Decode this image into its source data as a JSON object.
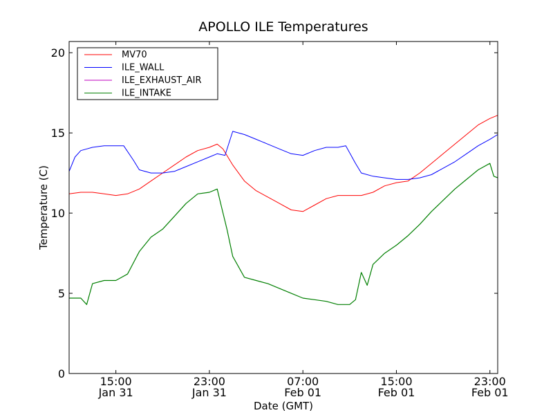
{
  "chart_data": {
    "type": "line",
    "title": "APOLLO ILE Temperatures",
    "xlabel": "Date (GMT)",
    "ylabel": "Temperature (C)",
    "xlim": [
      "2013-01-31T11:00",
      "2013-02-01T23:40"
    ],
    "ylim": [
      0,
      20.7
    ],
    "yticks": [
      0,
      5,
      10,
      15,
      20
    ],
    "xticks": [
      {
        "t": "2013-01-31T15:00",
        "line1": "15:00",
        "line2": "Jan 31"
      },
      {
        "t": "2013-01-31T23:00",
        "line1": "23:00",
        "line2": "Jan 31"
      },
      {
        "t": "2013-02-01T07:00",
        "line1": "07:00",
        "line2": "Feb 01"
      },
      {
        "t": "2013-02-01T15:00",
        "line1": "15:00",
        "line2": "Feb 01"
      },
      {
        "t": "2013-02-01T23:00",
        "line1": "23:00",
        "line2": "Feb 01"
      }
    ],
    "grid": false,
    "legend_position": "top-left",
    "series": [
      {
        "name": "MV70",
        "color": "#ff0000",
        "points": [
          [
            "2013-01-31T11:00",
            11.2
          ],
          [
            "2013-01-31T12:00",
            11.3
          ],
          [
            "2013-01-31T13:00",
            11.3
          ],
          [
            "2013-01-31T14:00",
            11.2
          ],
          [
            "2013-01-31T15:00",
            11.1
          ],
          [
            "2013-01-31T16:00",
            11.2
          ],
          [
            "2013-01-31T17:00",
            11.5
          ],
          [
            "2013-01-31T18:00",
            12.0
          ],
          [
            "2013-01-31T19:00",
            12.5
          ],
          [
            "2013-01-31T20:00",
            13.0
          ],
          [
            "2013-01-31T21:00",
            13.5
          ],
          [
            "2013-01-31T22:00",
            13.9
          ],
          [
            "2013-01-31T23:00",
            14.1
          ],
          [
            "2013-01-31T23:40",
            14.3
          ],
          [
            "2013-02-01T00:10",
            14.0
          ],
          [
            "2013-02-01T01:00",
            13.0
          ],
          [
            "2013-02-01T02:00",
            12.0
          ],
          [
            "2013-02-01T03:00",
            11.4
          ],
          [
            "2013-02-01T04:00",
            11.0
          ],
          [
            "2013-02-01T05:00",
            10.6
          ],
          [
            "2013-02-01T06:00",
            10.2
          ],
          [
            "2013-02-01T07:00",
            10.1
          ],
          [
            "2013-02-01T08:00",
            10.5
          ],
          [
            "2013-02-01T09:00",
            10.9
          ],
          [
            "2013-02-01T10:00",
            11.1
          ],
          [
            "2013-02-01T11:00",
            11.1
          ],
          [
            "2013-02-01T12:00",
            11.1
          ],
          [
            "2013-02-01T13:00",
            11.3
          ],
          [
            "2013-02-01T14:00",
            11.7
          ],
          [
            "2013-02-01T15:00",
            11.9
          ],
          [
            "2013-02-01T16:00",
            12.0
          ],
          [
            "2013-02-01T17:00",
            12.5
          ],
          [
            "2013-02-01T18:00",
            13.1
          ],
          [
            "2013-02-01T19:00",
            13.7
          ],
          [
            "2013-02-01T20:00",
            14.3
          ],
          [
            "2013-02-01T21:00",
            14.9
          ],
          [
            "2013-02-01T22:00",
            15.5
          ],
          [
            "2013-02-01T23:00",
            15.9
          ],
          [
            "2013-02-01T23:40",
            16.1
          ]
        ]
      },
      {
        "name": "ILE_WALL",
        "color": "#0000ff",
        "points": [
          [
            "2013-01-31T11:00",
            12.6
          ],
          [
            "2013-01-31T11:30",
            13.5
          ],
          [
            "2013-01-31T12:00",
            13.9
          ],
          [
            "2013-01-31T13:00",
            14.1
          ],
          [
            "2013-01-31T14:00",
            14.2
          ],
          [
            "2013-01-31T15:00",
            14.2
          ],
          [
            "2013-01-31T15:40",
            14.2
          ],
          [
            "2013-01-31T16:30",
            13.3
          ],
          [
            "2013-01-31T17:00",
            12.7
          ],
          [
            "2013-01-31T18:00",
            12.5
          ],
          [
            "2013-01-31T19:00",
            12.5
          ],
          [
            "2013-01-31T20:00",
            12.6
          ],
          [
            "2013-01-31T21:00",
            12.9
          ],
          [
            "2013-01-31T22:00",
            13.2
          ],
          [
            "2013-01-31T23:00",
            13.5
          ],
          [
            "2013-01-31T23:40",
            13.7
          ],
          [
            "2013-02-01T00:20",
            13.6
          ],
          [
            "2013-02-01T01:00",
            15.1
          ],
          [
            "2013-02-01T02:00",
            14.9
          ],
          [
            "2013-02-01T03:00",
            14.6
          ],
          [
            "2013-02-01T04:00",
            14.3
          ],
          [
            "2013-02-01T05:00",
            14.0
          ],
          [
            "2013-02-01T06:00",
            13.7
          ],
          [
            "2013-02-01T07:00",
            13.6
          ],
          [
            "2013-02-01T08:00",
            13.9
          ],
          [
            "2013-02-01T09:00",
            14.1
          ],
          [
            "2013-02-01T10:00",
            14.1
          ],
          [
            "2013-02-01T10:40",
            14.2
          ],
          [
            "2013-02-01T11:30",
            13.1
          ],
          [
            "2013-02-01T12:00",
            12.5
          ],
          [
            "2013-02-01T13:00",
            12.3
          ],
          [
            "2013-02-01T14:00",
            12.2
          ],
          [
            "2013-02-01T15:00",
            12.1
          ],
          [
            "2013-02-01T16:00",
            12.1
          ],
          [
            "2013-02-01T17:00",
            12.2
          ],
          [
            "2013-02-01T18:00",
            12.4
          ],
          [
            "2013-02-01T19:00",
            12.8
          ],
          [
            "2013-02-01T20:00",
            13.2
          ],
          [
            "2013-02-01T21:00",
            13.7
          ],
          [
            "2013-02-01T22:00",
            14.2
          ],
          [
            "2013-02-01T23:00",
            14.6
          ],
          [
            "2013-02-01T23:40",
            14.9
          ]
        ]
      },
      {
        "name": "ILE_EXHAUST_AIR",
        "color": "#bf00bf",
        "points": []
      },
      {
        "name": "ILE_INTAKE",
        "color": "#007f00",
        "points": [
          [
            "2013-01-31T11:00",
            4.7
          ],
          [
            "2013-01-31T12:00",
            4.7
          ],
          [
            "2013-01-31T12:30",
            4.3
          ],
          [
            "2013-01-31T13:00",
            5.6
          ],
          [
            "2013-01-31T14:00",
            5.8
          ],
          [
            "2013-01-31T15:00",
            5.8
          ],
          [
            "2013-01-31T16:00",
            6.2
          ],
          [
            "2013-01-31T17:00",
            7.6
          ],
          [
            "2013-01-31T18:00",
            8.5
          ],
          [
            "2013-01-31T19:00",
            9.0
          ],
          [
            "2013-01-31T20:00",
            9.8
          ],
          [
            "2013-01-31T21:00",
            10.6
          ],
          [
            "2013-01-31T22:00",
            11.2
          ],
          [
            "2013-01-31T23:00",
            11.3
          ],
          [
            "2013-01-31T23:40",
            11.5
          ],
          [
            "2013-02-01T00:00",
            10.5
          ],
          [
            "2013-02-01T00:30",
            9.0
          ],
          [
            "2013-02-01T01:00",
            7.3
          ],
          [
            "2013-02-01T02:00",
            6.0
          ],
          [
            "2013-02-01T03:00",
            5.8
          ],
          [
            "2013-02-01T04:00",
            5.6
          ],
          [
            "2013-02-01T05:00",
            5.3
          ],
          [
            "2013-02-01T06:00",
            5.0
          ],
          [
            "2013-02-01T07:00",
            4.7
          ],
          [
            "2013-02-01T08:00",
            4.6
          ],
          [
            "2013-02-01T09:00",
            4.5
          ],
          [
            "2013-02-01T10:00",
            4.3
          ],
          [
            "2013-02-01T11:00",
            4.3
          ],
          [
            "2013-02-01T11:30",
            4.6
          ],
          [
            "2013-02-01T12:00",
            6.3
          ],
          [
            "2013-02-01T12:30",
            5.5
          ],
          [
            "2013-02-01T13:00",
            6.8
          ],
          [
            "2013-02-01T14:00",
            7.5
          ],
          [
            "2013-02-01T15:00",
            8.0
          ],
          [
            "2013-02-01T16:00",
            8.6
          ],
          [
            "2013-02-01T17:00",
            9.3
          ],
          [
            "2013-02-01T18:00",
            10.1
          ],
          [
            "2013-02-01T19:00",
            10.8
          ],
          [
            "2013-02-01T20:00",
            11.5
          ],
          [
            "2013-02-01T21:00",
            12.1
          ],
          [
            "2013-02-01T22:00",
            12.7
          ],
          [
            "2013-02-01T23:00",
            13.1
          ],
          [
            "2013-02-01T23:20",
            12.3
          ],
          [
            "2013-02-01T23:40",
            12.2
          ]
        ]
      }
    ]
  }
}
